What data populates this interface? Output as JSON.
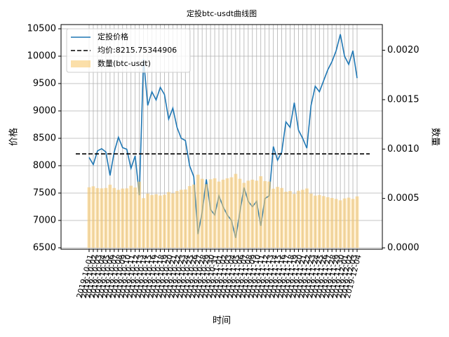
{
  "chart_data": {
    "type": "line_bar",
    "title": "定投btc-usdt曲线图",
    "xlabel": "时间",
    "ylabel": "价格",
    "y2label": "数量",
    "categories": [
      "2019-10-01",
      "2019-10-02",
      "2019-10-03",
      "2019-10-04",
      "2019-10-05",
      "2019-10-06",
      "2019-10-07",
      "2019-10-08",
      "2019-10-09",
      "2019-10-10",
      "2019-10-11",
      "2019-10-12",
      "2019-10-13",
      "2019-10-14",
      "2019-10-15",
      "2019-10-16",
      "2019-10-17",
      "2019-10-18",
      "2019-10-19",
      "2019-10-20",
      "2019-10-21",
      "2019-10-22",
      "2019-10-23",
      "2019-10-24",
      "2019-10-25",
      "2019-10-26",
      "2019-10-27",
      "2019-10-28",
      "2019-10-29",
      "2019-10-30",
      "2019-10-31",
      "2019-11-01",
      "2019-11-02",
      "2019-11-03",
      "2019-11-04",
      "2019-11-05",
      "2019-11-06",
      "2019-11-07",
      "2019-11-08",
      "2019-11-09",
      "2019-11-10",
      "2019-11-11",
      "2019-11-12",
      "2019-11-13",
      "2019-11-14",
      "2019-11-15",
      "2019-11-16",
      "2019-11-17",
      "2019-11-18",
      "2019-11-19",
      "2019-11-20",
      "2019-11-21",
      "2019-11-22",
      "2019-11-23",
      "2019-11-24",
      "2019-11-25",
      "2019-11-26",
      "2019-11-27",
      "2019-11-28",
      "2019-11-29",
      "2019-11-30",
      "2019-12-01",
      "2019-12-02",
      "2019-12-03",
      "2019-12-04"
    ],
    "series": [
      {
        "name": "定投价格",
        "color": "#1f77b4",
        "kind": "line",
        "values": [
          8150,
          8020,
          8270,
          8310,
          8250,
          7820,
          8250,
          8520,
          8330,
          8300,
          7950,
          8180,
          7460,
          9950,
          9100,
          9350,
          9200,
          9430,
          9300,
          8850,
          9050,
          8700,
          8500,
          8460,
          8000,
          7800,
          6750,
          7150,
          7750,
          7200,
          7100,
          7450,
          7250,
          7100,
          7000,
          6680,
          7150,
          7600,
          7350,
          7250,
          7350,
          6900,
          7400,
          7450,
          8350,
          8100,
          8250,
          8800,
          8700,
          9150,
          8650,
          8500,
          8320,
          9100,
          9450,
          9350,
          9550,
          9750,
          9900,
          10100,
          10400,
          10000,
          9850,
          10100,
          9600
        ]
      },
      {
        "name": "数量(btc-usdt)",
        "color": "#f9c970",
        "kind": "bar",
        "axis": "y2",
        "values": [
          0.000613,
          0.000623,
          0.000605,
          0.000602,
          0.000606,
          0.000639,
          0.000606,
          0.000587,
          0.0006,
          0.000602,
          0.000629,
          0.000611,
          0.00067,
          0.000503,
          0.000549,
          0.000535,
          0.000543,
          0.00053,
          0.000538,
          0.000565,
          0.000552,
          0.000575,
          0.000588,
          0.000591,
          0.000625,
          0.000641,
          0.000741,
          0.000699,
          0.000645,
          0.000694,
          0.000704,
          0.000671,
          0.00069,
          0.000704,
          0.000714,
          0.000749,
          0.000699,
          0.000658,
          0.00068,
          0.00069,
          0.00068,
          0.000725,
          0.000676,
          0.000671,
          0.000599,
          0.000617,
          0.000606,
          0.000568,
          0.000575,
          0.000546,
          0.000578,
          0.000588,
          0.000601,
          0.000549,
          0.000529,
          0.000535,
          0.000524,
          0.000513,
          0.000505,
          0.000495,
          0.000481,
          0.0005,
          0.000508,
          0.000495,
          0.000521
        ]
      }
    ],
    "mean": {
      "name": "均价:8215.75344906",
      "value": 8215.75344906,
      "color": "#000000"
    },
    "ylim": [
      6474,
      10577
    ],
    "yticks": [
      6500,
      7000,
      7500,
      8000,
      8500,
      9000,
      9500,
      10000,
      10500
    ],
    "y2lim": [
      -1.4e-05,
      0.00226
    ],
    "y2ticks": [
      {
        "value": 0,
        "label": "0.0000"
      },
      {
        "value": 0.0005,
        "label": "0.0005"
      },
      {
        "value": 0.001,
        "label": "0.0010"
      },
      {
        "value": 0.0015,
        "label": "0.0015"
      },
      {
        "value": 0.002,
        "label": "0.0020"
      }
    ],
    "grid": true,
    "legend": "upper left"
  }
}
